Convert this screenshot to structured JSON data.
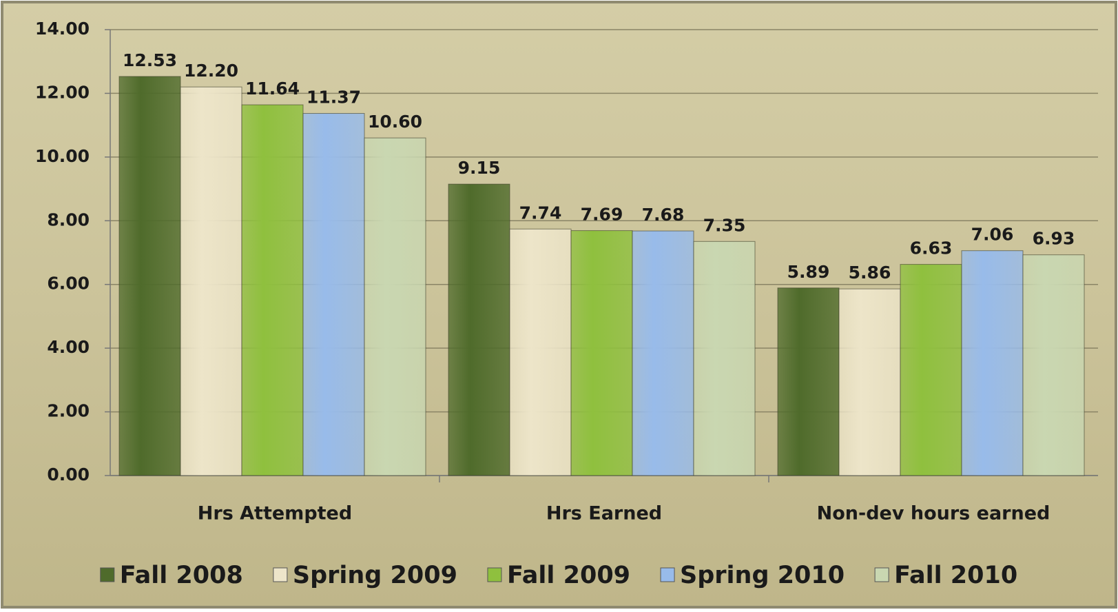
{
  "chart_data": {
    "type": "bar",
    "categories": [
      "Hrs Attempted",
      "Hrs Earned",
      "Non-dev hours earned"
    ],
    "series": [
      {
        "name": "Fall 2008",
        "color": "#4f6b2b",
        "values": [
          12.53,
          9.15,
          5.89
        ],
        "value_labels": [
          "12.53",
          "9.15",
          "5.89"
        ]
      },
      {
        "name": "Spring 2009",
        "color": "#ede5c9",
        "values": [
          12.2,
          7.74,
          5.86
        ],
        "value_labels": [
          "12.20",
          "7.74",
          "5.86"
        ]
      },
      {
        "name": "Fall 2009",
        "color": "#8fc03e",
        "values": [
          11.64,
          7.69,
          6.63
        ],
        "value_labels": [
          "11.64",
          "7.69",
          "6.63"
        ]
      },
      {
        "name": "Spring 2010",
        "color": "#98bbea",
        "values": [
          11.37,
          7.68,
          7.06
        ],
        "value_labels": [
          "11.37",
          "7.68",
          "7.06"
        ]
      },
      {
        "name": "Fall 2010",
        "color": "#c9d7b1",
        "values": [
          10.6,
          7.35,
          6.93
        ],
        "value_labels": [
          "10.60",
          "7.35",
          "6.93"
        ]
      }
    ],
    "ylim": [
      0,
      14
    ],
    "yticks": [
      {
        "value": 0,
        "label": "0.00"
      },
      {
        "value": 2,
        "label": "2.00"
      },
      {
        "value": 4,
        "label": "4.00"
      },
      {
        "value": 6,
        "label": "6.00"
      },
      {
        "value": 8,
        "label": "8.00"
      },
      {
        "value": 10,
        "label": "10.00"
      },
      {
        "value": 12,
        "label": "12.00"
      },
      {
        "value": 14,
        "label": "14.00"
      }
    ],
    "grid": true,
    "legend": "bottom"
  }
}
